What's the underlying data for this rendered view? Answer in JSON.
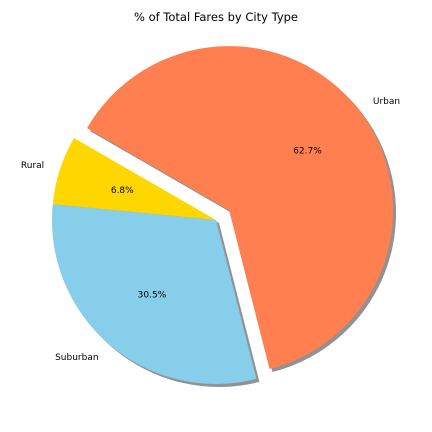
{
  "chart_data": {
    "type": "pie",
    "title": "% of Total Fares by City Type",
    "labels": [
      "Rural",
      "Suburban",
      "Urban"
    ],
    "values": [
      6.8,
      30.5,
      62.7
    ],
    "value_labels": [
      "6.8%",
      "30.5%",
      "62.7%"
    ],
    "colors": [
      "#FFD700",
      "#87CEEB",
      "#FF7F50"
    ],
    "explode": [
      0,
      0,
      0.1
    ],
    "start_angle_deg": 150,
    "shadow": true
  }
}
